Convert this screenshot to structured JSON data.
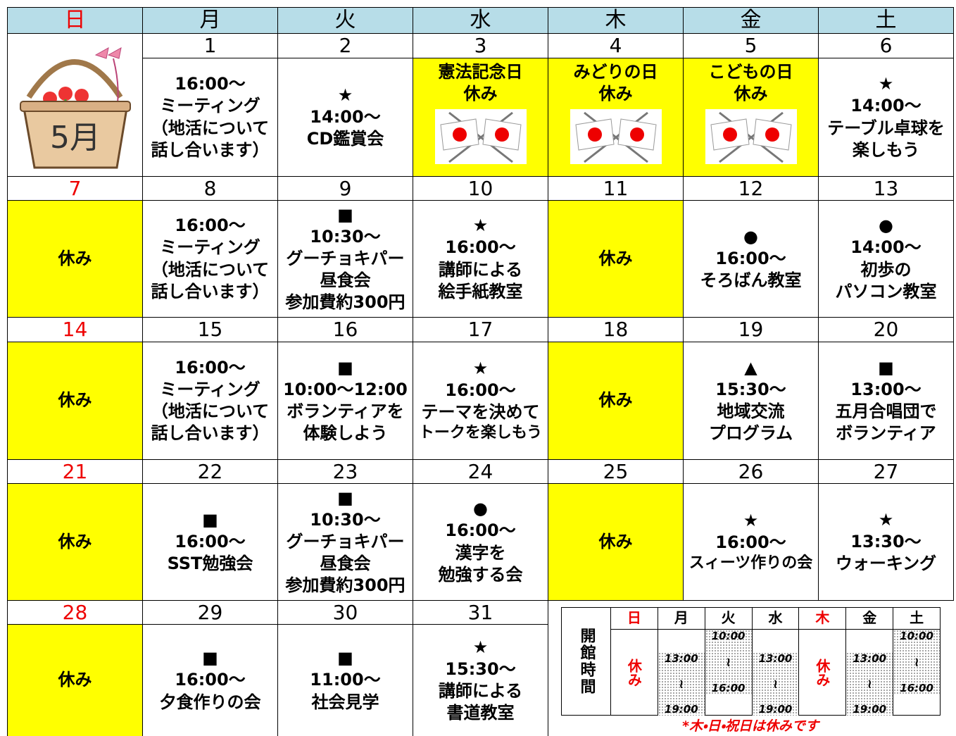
{
  "header": {
    "weekdays": [
      "日",
      "月",
      "火",
      "水",
      "木",
      "金",
      "土"
    ]
  },
  "month_label": "5月",
  "weeks": [
    {
      "days": [
        null,
        {
          "date": 1,
          "lines": [
            "16:00～",
            "ミーティング",
            "（地活について",
            "話し合います）"
          ]
        },
        {
          "date": 2,
          "lines": [
            "★",
            "14:00～",
            "CD鑑賞会"
          ]
        },
        {
          "date": 3,
          "lines": [
            "憲法記念日",
            "休み"
          ],
          "highlight": true,
          "flag": true
        },
        {
          "date": 4,
          "lines": [
            "みどりの日",
            "休み"
          ],
          "highlight": true,
          "flag": true
        },
        {
          "date": 5,
          "lines": [
            "こどもの日",
            "休み"
          ],
          "highlight": true,
          "flag": true
        },
        {
          "date": 6,
          "lines": [
            "★",
            "14:00～",
            "テーブル卓球を",
            "楽しもう"
          ]
        }
      ]
    },
    {
      "days": [
        {
          "date": 7,
          "lines": [
            "休み"
          ],
          "highlight": true
        },
        {
          "date": 8,
          "lines": [
            "16:00～",
            "ミーティング",
            "（地活について",
            "話し合います）"
          ]
        },
        {
          "date": 9,
          "lines": [
            "■",
            "10:30～",
            "グーチョキパー",
            "昼食会",
            "参加費約300円"
          ]
        },
        {
          "date": 10,
          "lines": [
            "★",
            "16:00～",
            "講師による",
            "絵手紙教室"
          ]
        },
        {
          "date": 11,
          "lines": [
            "休み"
          ],
          "highlight": true
        },
        {
          "date": 12,
          "lines": [
            "●",
            "16:00～",
            "そろばん教室"
          ]
        },
        {
          "date": 13,
          "lines": [
            "●",
            "14:00～",
            "初歩の",
            "パソコン教室"
          ]
        }
      ]
    },
    {
      "days": [
        {
          "date": 14,
          "lines": [
            "休み"
          ],
          "highlight": true
        },
        {
          "date": 15,
          "lines": [
            "16:00～",
            "ミーティング",
            "（地活について",
            "話し合います）"
          ]
        },
        {
          "date": 16,
          "lines": [
            "■",
            "10:00～12:00",
            "ボランティアを",
            "体験しよう"
          ]
        },
        {
          "date": 17,
          "lines": [
            "★",
            "16:00～",
            "テーマを決めて",
            "トークを楽しもう"
          ]
        },
        {
          "date": 18,
          "lines": [
            "休み"
          ],
          "highlight": true
        },
        {
          "date": 19,
          "lines": [
            "▲",
            "15:30～",
            "地域交流",
            "プログラム"
          ]
        },
        {
          "date": 20,
          "lines": [
            "■",
            "13:00～",
            "五月合唱団で",
            "ボランティア"
          ]
        }
      ]
    },
    {
      "days": [
        {
          "date": 21,
          "lines": [
            "休み"
          ],
          "highlight": true
        },
        {
          "date": 22,
          "lines": [
            "■",
            "16:00～",
            "SST勉強会"
          ]
        },
        {
          "date": 23,
          "lines": [
            "■",
            "10:30～",
            "グーチョキパー",
            "昼食会",
            "参加費約300円"
          ]
        },
        {
          "date": 24,
          "lines": [
            "●",
            "16:00～",
            "漢字を",
            "勉強する会"
          ]
        },
        {
          "date": 25,
          "lines": [
            "休み"
          ],
          "highlight": true
        },
        {
          "date": 26,
          "lines": [
            "★",
            "16:00～",
            "スィーツ作りの会"
          ]
        },
        {
          "date": 27,
          "lines": [
            "★",
            "13:30～",
            "ウォーキング"
          ]
        }
      ]
    },
    {
      "days": [
        {
          "date": 28,
          "lines": [
            "休み"
          ],
          "highlight": true
        },
        {
          "date": 29,
          "lines": [
            "■",
            "16:00～",
            "夕食作りの会"
          ]
        },
        {
          "date": 30,
          "lines": [
            "■",
            "11:00～",
            "社会見学"
          ]
        },
        {
          "date": 31,
          "lines": [
            "★",
            "15:30～",
            "講師による",
            "書道教室"
          ]
        }
      ]
    }
  ],
  "hours": {
    "title": "開館時間",
    "separator": "≀",
    "note": "*木・日・祝日は休みです",
    "days": [
      {
        "day": "日",
        "closed": "休み"
      },
      {
        "day": "月",
        "open": "13:00",
        "close": "19:00"
      },
      {
        "day": "火",
        "open": "10:00",
        "close": "16:00"
      },
      {
        "day": "水",
        "open": "13:00",
        "close": "19:00"
      },
      {
        "day": "木",
        "closed": "休み"
      },
      {
        "day": "金",
        "open": "13:00",
        "close": "19:00"
      },
      {
        "day": "土",
        "open": "10:00",
        "close": "16:00"
      }
    ]
  }
}
